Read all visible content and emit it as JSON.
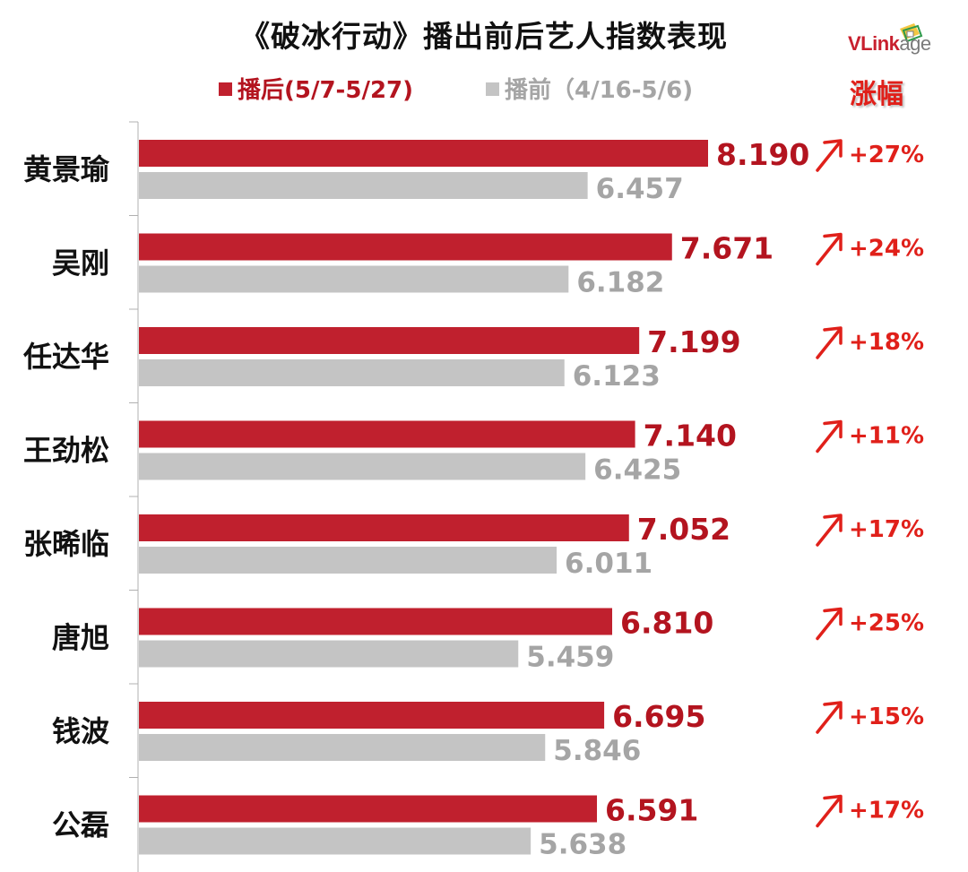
{
  "header": {
    "title": "《破冰行动》播出前后艺人指数表现",
    "logo_part1": "VLink",
    "logo_part2": "age",
    "change_header": "涨幅"
  },
  "chart_data": {
    "type": "bar",
    "orientation": "horizontal",
    "title": "《破冰行动》播出前后艺人指数表现",
    "categories": [
      "黄景瑜",
      "吴刚",
      "任达华",
      "王劲松",
      "张晞临",
      "唐旭",
      "钱波",
      "公磊"
    ],
    "series": [
      {
        "name": "播后(5/7-5/27)",
        "color": "#c0202e",
        "label_color": "#b3141f",
        "values": [
          8.19,
          7.671,
          7.199,
          7.14,
          7.052,
          6.81,
          6.695,
          6.591
        ],
        "labels": [
          "8.190",
          "7.671",
          "7.199",
          "7.140",
          "7.052",
          "6.810",
          "6.695",
          "6.591"
        ]
      },
      {
        "name": "播前（4/16-5/6)",
        "color": "#c4c4c4",
        "label_color": "#a5a5a5",
        "values": [
          6.457,
          6.182,
          6.123,
          6.425,
          6.011,
          5.459,
          5.846,
          5.638
        ],
        "labels": [
          "6.457",
          "6.182",
          "6.123",
          "6.425",
          "6.011",
          "5.459",
          "5.846",
          "5.638"
        ]
      }
    ],
    "changes": [
      "+27%",
      "+24%",
      "+18%",
      "+11%",
      "+17%",
      "+25%",
      "+15%",
      "+17%"
    ],
    "change_color": "#e0201a",
    "xlim": [
      0,
      9.2
    ],
    "legend": "top",
    "grid": false
  }
}
